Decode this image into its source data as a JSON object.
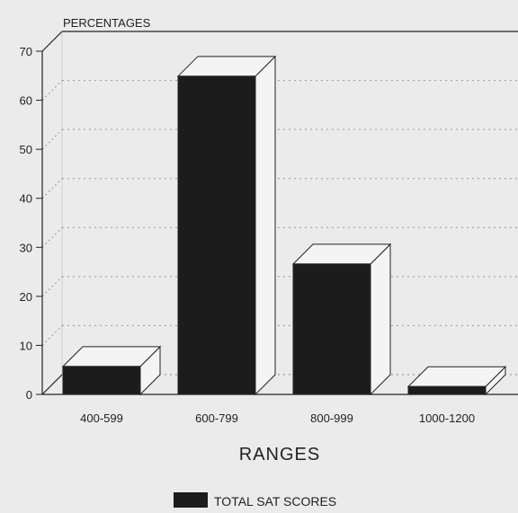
{
  "chart_data": {
    "type": "bar",
    "style": "3d",
    "categories": [
      "400-599",
      "600-799",
      "800-999",
      "1000-1200"
    ],
    "series": [
      {
        "name": "TOTAL SAT SCORES",
        "values": [
          5.7,
          64.9,
          26.6,
          1.6
        ],
        "color": "#1c1c1c"
      }
    ],
    "ylabel": "PERCENTAGES",
    "xlabel": "RANGES",
    "ylim": [
      0,
      70
    ],
    "yticks": [
      0,
      10,
      20,
      30,
      40,
      50,
      60,
      70
    ],
    "grid": true,
    "legend_position": "bottom"
  },
  "colors": {
    "background": "#ebebeb",
    "bar_front": "#1c1c1c",
    "bar_top": "#f4f4f4",
    "bar_side": "#f4f4f4",
    "axis": "#222222",
    "grid": "#9a9a9a"
  }
}
